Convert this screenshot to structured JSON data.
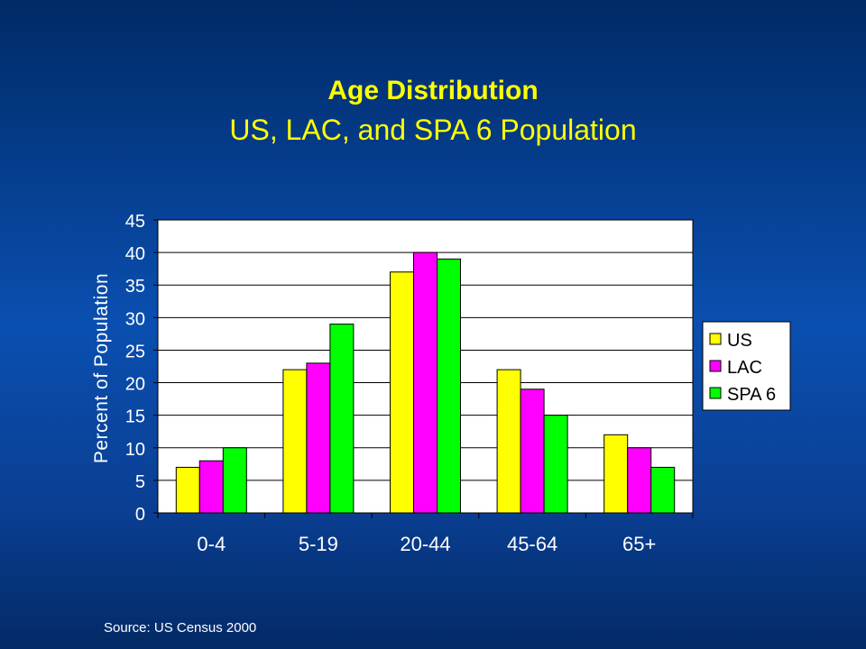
{
  "slide": {
    "title": "Age Distribution",
    "subtitle": "US, LAC, and SPA 6 Population",
    "source": "Source:  US Census 2000"
  },
  "chart_data": {
    "type": "bar",
    "categories": [
      "0-4",
      "5-19",
      "20-44",
      "45-64",
      "65+"
    ],
    "series": [
      {
        "name": "US",
        "values": [
          7,
          22,
          37,
          22,
          12
        ],
        "color": "#ffff00"
      },
      {
        "name": "LAC",
        "values": [
          8,
          23,
          40,
          19,
          10
        ],
        "color": "#ff00ff"
      },
      {
        "name": "SPA 6",
        "values": [
          10,
          29,
          39,
          15,
          7
        ],
        "color": "#00ff00"
      }
    ],
    "ylabel": "Percent of Population",
    "ylim": [
      0,
      45
    ],
    "yticks": [
      0,
      5,
      10,
      15,
      20,
      25,
      30,
      35,
      40,
      45
    ],
    "grid": true,
    "legend": "right",
    "plot_background": "#ffffff"
  }
}
